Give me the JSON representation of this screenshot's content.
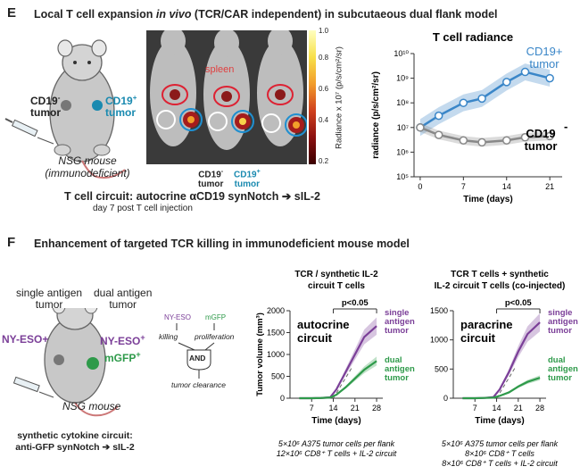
{
  "panel_e": {
    "letter": "E",
    "heading_pre": "Local T cell expansion ",
    "heading_italic": "in vivo",
    "heading_post": " (TCR/CAR independent) in subcutaeous dual flank model",
    "mouse": {
      "left_label_line1": "CD19",
      "left_label_sup": "-",
      "left_label_line2": "tumor",
      "right_label_line1": "CD19",
      "right_label_sup": "+",
      "right_label_line2": "tumor",
      "caption_line1": "NSG mouse",
      "caption_line2": "(immunodeficient)"
    },
    "imaging": {
      "spleen_label": "spleen",
      "neg_label_line1": "CD19",
      "neg_sup": "-",
      "neg_label_line2": "tumor",
      "pos_label_line1": "CD19",
      "pos_sup": "+",
      "pos_label_line2": "tumor",
      "colorbar_top": "1.0",
      "colorbar_bottom": "0.2",
      "colorbar_ticks": [
        "0.8",
        "0.6",
        "0.4"
      ],
      "colorbar_label": "Radiance x 10⁷ (p/s/cm²/sr)"
    },
    "circuit_line1": "T cell circuit: autocrine αCD19 synNotch ➔ sIL-2",
    "circuit_line2": "day 7 post T cell injection"
  },
  "panel_f": {
    "letter": "F",
    "heading": "Enhancement of targeted TCR killing in immunodeficient mouse model",
    "mouse": {
      "single_label_line1": "single antigen",
      "single_label_line2": "tumor",
      "dual_label_line1": "dual antigen",
      "dual_label_line2": "tumor",
      "nyeso_left": "NY-ESO+",
      "nyeso_right": "NY-ESO",
      "nyeso_right_sup": "+",
      "mgfp": "mGFP",
      "mgfp_sup": "+",
      "caption": "NSG mouse",
      "circuit_line1": "synthetic cytokine circuit:",
      "circuit_line2": "anti-GFP synNotch ➔ sIL-2"
    },
    "logic": {
      "input1": "NY-ESO",
      "input2": "mGFP",
      "process1": "killing",
      "process2": "proliferation",
      "gate": "AND",
      "output": "tumor clearance"
    }
  },
  "chart_data": [
    {
      "type": "line",
      "title": "T cell radiance",
      "xlabel": "Time (days)",
      "ylabel": "radiance (p/s/cm²/sr)",
      "yscale": "log",
      "ylim": [
        100000,
        10000000000
      ],
      "yticks": [
        "10⁵",
        "10⁶",
        "10⁷",
        "10⁸",
        "10⁹",
        "10¹⁰"
      ],
      "xticks": [
        0,
        7,
        14,
        21
      ],
      "series": [
        {
          "name": "CD19+ tumor",
          "label_line1": "CD19+",
          "label_line2": "tumor",
          "color": "#3a86c8",
          "x": [
            0,
            3,
            7,
            10,
            14,
            17,
            21
          ],
          "y": [
            10000000,
            30000000,
            100000000,
            150000000,
            700000000,
            1800000000,
            1000000000
          ]
        },
        {
          "name": "CD19- tumor",
          "label_line1": "CD19",
          "label_sup": "-",
          "label_line2": "tumor",
          "color": "#888888",
          "x": [
            0,
            3,
            7,
            10,
            14,
            17,
            21
          ],
          "y": [
            10000000,
            5000000,
            3000000,
            2500000,
            3000000,
            4000000,
            4500000
          ]
        }
      ]
    },
    {
      "type": "line",
      "title_line1": "TCR / synthetic IL-2",
      "title_line2": "circuit T cells",
      "inset_line1": "autocrine",
      "inset_line2": "circuit",
      "significance": "p<0.05",
      "xlabel": "Time (days)",
      "ylabel": "Tumor volume (mm³)",
      "ylim": [
        0,
        2000
      ],
      "yticks": [
        0,
        500,
        1000,
        1500,
        2000
      ],
      "xticks": [
        7,
        14,
        21,
        28
      ],
      "series": [
        {
          "name": "single antigen tumor",
          "label": [
            "single",
            "antigen",
            "tumor"
          ],
          "color": "#7b3f98",
          "x": [
            3,
            7,
            10,
            13,
            15,
            18,
            21,
            24,
            28
          ],
          "y": [
            0,
            0,
            5,
            20,
            200,
            600,
            1000,
            1400,
            1650
          ]
        },
        {
          "name": "dual antigen tumor",
          "label": [
            "dual",
            "antigen",
            "tumor"
          ],
          "color": "#2e9a4a",
          "x": [
            3,
            7,
            10,
            13,
            15,
            18,
            21,
            24,
            28
          ],
          "y": [
            0,
            0,
            5,
            15,
            80,
            250,
            450,
            650,
            850
          ]
        }
      ],
      "footnote_line1": "5×10⁶ A375 tumor cells per flank",
      "footnote_line2": "12×10⁶ CD8⁺ T cells + IL-2 circuit"
    },
    {
      "type": "line",
      "title_line1": "TCR T cells + synthetic",
      "title_line2": "IL-2 circuit T cells (co-injected)",
      "inset_line1": "paracrine",
      "inset_line2": "circuit",
      "significance": "p<0.05",
      "xlabel": "Time (days)",
      "ylabel": "",
      "ylim": [
        0,
        1500
      ],
      "yticks": [
        0,
        500,
        1000,
        1500
      ],
      "xticks": [
        7,
        14,
        21,
        28
      ],
      "series": [
        {
          "name": "single antigen tumor",
          "label": [
            "single",
            "antigen",
            "tumor"
          ],
          "color": "#7b3f98",
          "x": [
            3,
            7,
            10,
            13,
            15,
            18,
            21,
            24,
            28
          ],
          "y": [
            0,
            0,
            5,
            20,
            150,
            450,
            800,
            1100,
            1300
          ]
        },
        {
          "name": "dual antigen tumor",
          "label": [
            "dual",
            "antigen",
            "tumor"
          ],
          "color": "#2e9a4a",
          "x": [
            3,
            7,
            10,
            13,
            15,
            18,
            21,
            24,
            28
          ],
          "y": [
            0,
            0,
            5,
            10,
            40,
            100,
            200,
            280,
            350
          ]
        }
      ],
      "footnote_line1": "5×10⁶ A375 tumor cells per flank",
      "footnote_line2": "8×10⁶ CD8⁺ T cells",
      "footnote_line3": "8×10⁶ CD8⁺ T cells + IL-2 circuit"
    }
  ]
}
